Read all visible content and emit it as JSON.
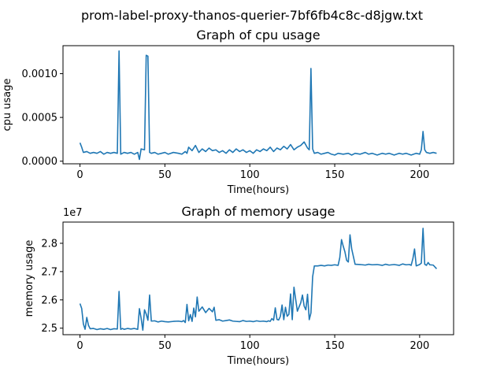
{
  "figure": {
    "suptitle": "prom-label-proxy-thanos-querier-7bf6fb4c8c-d8jgw.txt"
  },
  "chart_data": [
    {
      "type": "line",
      "title": "Graph of cpu usage",
      "xlabel": "Time(hours)",
      "ylabel": "cpu usage",
      "xlim": [
        -10,
        220
      ],
      "ylim": [
        -3e-05,
        0.00132
      ],
      "x_ticks": [
        0,
        50,
        100,
        150,
        200
      ],
      "x_tick_labels": [
        "0",
        "50",
        "100",
        "150",
        "200"
      ],
      "y_ticks": [
        0.0,
        0.0005,
        0.001
      ],
      "y_tick_labels": [
        "0.0000",
        "0.0005",
        "0.0010"
      ],
      "grid": false,
      "color": "#1f77b4",
      "series": [
        {
          "x": [
            0,
            1,
            2,
            4,
            6,
            8,
            10,
            12,
            14,
            16,
            18,
            20,
            22,
            23,
            24,
            26,
            28,
            30,
            32,
            34,
            35,
            36,
            38,
            39,
            40,
            41,
            42,
            44,
            46,
            48,
            50,
            52,
            55,
            58,
            60,
            62,
            63,
            64,
            66,
            68,
            70,
            72,
            74,
            76,
            78,
            80,
            82,
            84,
            86,
            88,
            90,
            92,
            94,
            96,
            98,
            100,
            102,
            104,
            106,
            108,
            110,
            112,
            114,
            116,
            118,
            120,
            122,
            124,
            126,
            128,
            130,
            132,
            134,
            135,
            136,
            137,
            138,
            140,
            142,
            144,
            146,
            148,
            150,
            152,
            155,
            158,
            160,
            162,
            165,
            168,
            170,
            172,
            175,
            178,
            180,
            182,
            185,
            188,
            190,
            192,
            195,
            198,
            200,
            201,
            202,
            203,
            204,
            206,
            208,
            210
          ],
          "y": [
            0.00021,
            0.00016,
            0.0001,
            0.00011,
            9e-05,
            0.0001,
            9e-05,
            0.00011,
            8e-05,
            0.0001,
            9e-05,
            0.0001,
            9e-05,
            0.00126,
            8e-05,
            0.0001,
            9e-05,
            0.0001,
            8e-05,
            0.0001,
            2e-05,
            0.00014,
            0.00013,
            0.00121,
            0.0012,
            0.0001,
            9e-05,
            0.0001,
            8e-05,
            9e-05,
            0.0001,
            8e-05,
            0.0001,
            9e-05,
            8e-05,
            0.00011,
            9e-05,
            0.00016,
            0.00012,
            0.00018,
            0.0001,
            0.00014,
            0.00011,
            0.00015,
            0.00012,
            0.00013,
            0.0001,
            0.00012,
            9e-05,
            0.00013,
            0.0001,
            0.00014,
            0.00011,
            0.00013,
            0.0001,
            0.00012,
            9e-05,
            0.00013,
            0.00011,
            0.00014,
            0.00012,
            0.00016,
            0.00011,
            0.00015,
            0.00013,
            0.00017,
            0.00014,
            0.00019,
            0.00013,
            0.00016,
            0.00018,
            0.00022,
            0.00015,
            0.00013,
            0.00106,
            0.00014,
            9e-05,
            0.0001,
            8e-05,
            9e-05,
            0.0001,
            8e-05,
            7e-05,
            9e-05,
            8e-05,
            9e-05,
            7e-05,
            9e-05,
            8e-05,
            0.0001,
            8e-05,
            9e-05,
            7e-05,
            9e-05,
            8e-05,
            9e-05,
            7e-05,
            9e-05,
            8e-05,
            9e-05,
            7e-05,
            9e-05,
            8e-05,
            0.00013,
            0.00034,
            0.00013,
            0.0001,
            9e-05,
            0.0001,
            9e-05
          ]
        }
      ]
    },
    {
      "type": "line",
      "title": "Graph of memory usage",
      "xlabel": "Time(hours)",
      "ylabel": "memory usage",
      "y_scale_label": "1e7",
      "xlim": [
        -10,
        220
      ],
      "ylim": [
        24770000,
        28750000
      ],
      "x_ticks": [
        0,
        50,
        100,
        150,
        200
      ],
      "x_tick_labels": [
        "0",
        "50",
        "100",
        "150",
        "200"
      ],
      "y_ticks": [
        25000000,
        26000000,
        27000000,
        28000000
      ],
      "y_tick_labels": [
        "2.5",
        "2.6",
        "2.7",
        "2.8"
      ],
      "grid": false,
      "color": "#1f77b4",
      "series": [
        {
          "x": [
            0,
            1,
            2,
            3,
            4,
            5,
            6,
            8,
            10,
            12,
            14,
            16,
            18,
            20,
            22,
            23,
            24,
            25,
            26,
            28,
            30,
            32,
            34,
            35,
            36,
            37,
            38,
            39,
            40,
            41,
            42,
            44,
            46,
            48,
            50,
            52,
            55,
            58,
            60,
            61,
            62,
            63,
            64,
            65,
            66,
            67,
            68,
            69,
            70,
            72,
            74,
            76,
            78,
            79,
            80,
            82,
            84,
            86,
            88,
            90,
            92,
            94,
            96,
            98,
            100,
            102,
            104,
            106,
            108,
            110,
            111,
            112,
            113,
            114,
            115,
            116,
            117,
            118,
            119,
            120,
            121,
            122,
            123,
            124,
            125,
            126,
            128,
            130,
            131,
            132,
            133,
            134,
            135,
            136,
            137,
            138,
            140,
            142,
            144,
            146,
            148,
            150,
            152,
            153,
            154,
            155,
            156,
            157,
            158,
            159,
            160,
            162,
            165,
            168,
            170,
            172,
            175,
            178,
            180,
            182,
            185,
            188,
            190,
            192,
            194,
            195,
            196,
            197,
            198,
            200,
            201,
            202,
            203,
            204,
            205,
            206,
            208,
            210
          ],
          "y": [
            25870000,
            25700000,
            25150000,
            24960000,
            25380000,
            25100000,
            24980000,
            24990000,
            24950000,
            24980000,
            24960000,
            24990000,
            24950000,
            24980000,
            24970000,
            26300000,
            24960000,
            24990000,
            24960000,
            24990000,
            24970000,
            24990000,
            24960000,
            25690000,
            25350000,
            24930000,
            25650000,
            25500000,
            25280000,
            26170000,
            25250000,
            25260000,
            25220000,
            25250000,
            25230000,
            25220000,
            25240000,
            25250000,
            25230000,
            25270000,
            25200000,
            25840000,
            25260000,
            25480000,
            25240000,
            25710000,
            25400000,
            26100000,
            25600000,
            25750000,
            25550000,
            25700000,
            25580000,
            25740000,
            25280000,
            25300000,
            25250000,
            25270000,
            25290000,
            25250000,
            25240000,
            25230000,
            25270000,
            25240000,
            25250000,
            25230000,
            25260000,
            25240000,
            25250000,
            25230000,
            25260000,
            25240000,
            25340000,
            25280000,
            25720000,
            25310000,
            25290000,
            25420000,
            25820000,
            25300000,
            25740000,
            25420000,
            25490000,
            26210000,
            25300000,
            26450000,
            25600000,
            25900000,
            26170000,
            25780000,
            25650000,
            26200000,
            25300000,
            25540000,
            26820000,
            27200000,
            27200000,
            27220000,
            27200000,
            27230000,
            27220000,
            27240000,
            27220000,
            27500000,
            28130000,
            27900000,
            27700000,
            27400000,
            27340000,
            28300000,
            27800000,
            27260000,
            27250000,
            27230000,
            27260000,
            27240000,
            27250000,
            27220000,
            27260000,
            27230000,
            27250000,
            27220000,
            27270000,
            27240000,
            27250000,
            27220000,
            27450000,
            27800000,
            27200000,
            27250000,
            27300000,
            28530000,
            27260000,
            27220000,
            27320000,
            27240000,
            27230000,
            27100000
          ]
        }
      ]
    }
  ]
}
